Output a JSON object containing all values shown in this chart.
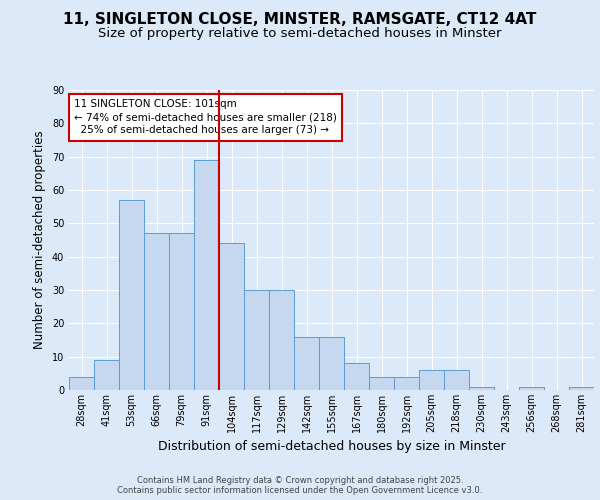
{
  "title": "11, SINGLETON CLOSE, MINSTER, RAMSGATE, CT12 4AT",
  "subtitle": "Size of property relative to semi-detached houses in Minster",
  "xlabel": "Distribution of semi-detached houses by size in Minster",
  "ylabel": "Number of semi-detached properties",
  "bin_labels": [
    "28sqm",
    "41sqm",
    "53sqm",
    "66sqm",
    "79sqm",
    "91sqm",
    "104sqm",
    "117sqm",
    "129sqm",
    "142sqm",
    "155sqm",
    "167sqm",
    "180sqm",
    "192sqm",
    "205sqm",
    "218sqm",
    "230sqm",
    "243sqm",
    "256sqm",
    "268sqm",
    "281sqm"
  ],
  "bar_heights": [
    4,
    9,
    57,
    47,
    47,
    69,
    44,
    30,
    30,
    16,
    16,
    8,
    4,
    4,
    6,
    6,
    1,
    0,
    1,
    0,
    1
  ],
  "bar_color": "#c5d8f0",
  "bar_edge_color": "#5b9bd5",
  "highlight_color": "#cc0000",
  "annotation_text": "11 SINGLETON CLOSE: 101sqm\n← 74% of semi-detached houses are smaller (218)\n  25% of semi-detached houses are larger (73) →",
  "annotation_box_color": "#cc0000",
  "bg_color": "#dce9f8",
  "plot_bg_color": "#dce9f8",
  "ylim": [
    0,
    90
  ],
  "yticks": [
    0,
    10,
    20,
    30,
    40,
    50,
    60,
    70,
    80,
    90
  ],
  "footer": "Contains HM Land Registry data © Crown copyright and database right 2025.\nContains public sector information licensed under the Open Government Licence v3.0.",
  "title_fontsize": 11,
  "subtitle_fontsize": 9.5,
  "xlabel_fontsize": 9,
  "ylabel_fontsize": 8.5,
  "tick_fontsize": 7,
  "annotation_fontsize": 7.5
}
